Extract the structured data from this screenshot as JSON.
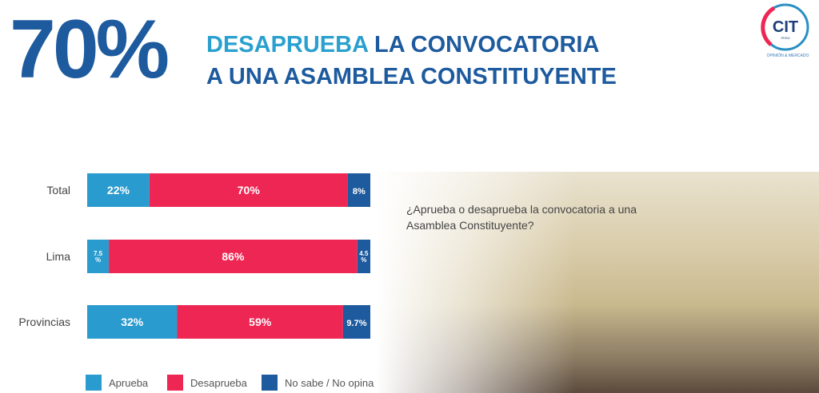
{
  "header": {
    "big_number": "70%",
    "headline_highlight": "DESAPRUEBA",
    "headline_rest_1": " LA CONVOCATORIA",
    "headline_line_2": "A UNA ASAMBLEA CONSTITUYENTE"
  },
  "logo": {
    "text": "CIT",
    "sub": "PERÚ",
    "tagline": "OPINIÓN & MERCADO"
  },
  "question": "¿Aprueba o desaprueba la convocatoria a una Asamblea Constituyente?",
  "chart_data": {
    "type": "bar",
    "orientation": "horizontal",
    "stacked": true,
    "categories": [
      "Total",
      "Lima",
      "Provincias"
    ],
    "series": [
      {
        "name": "Aprueba",
        "color": "#2a9bce",
        "values": [
          22,
          7.5,
          32
        ],
        "labels": [
          "22%",
          "7.5 %",
          "32%"
        ]
      },
      {
        "name": "Desaprueba",
        "color": "#ee2653",
        "values": [
          70,
          86,
          59
        ],
        "labels": [
          "70%",
          "86%",
          "59%"
        ]
      },
      {
        "name": "No sabe / No opina",
        "color": "#1d5a9e",
        "values": [
          8,
          4.5,
          9.7
        ],
        "labels": [
          "8%",
          "4.5 %",
          "9.7%"
        ]
      }
    ],
    "xlim": [
      0,
      100
    ],
    "legend": "bottom",
    "grid": false
  }
}
